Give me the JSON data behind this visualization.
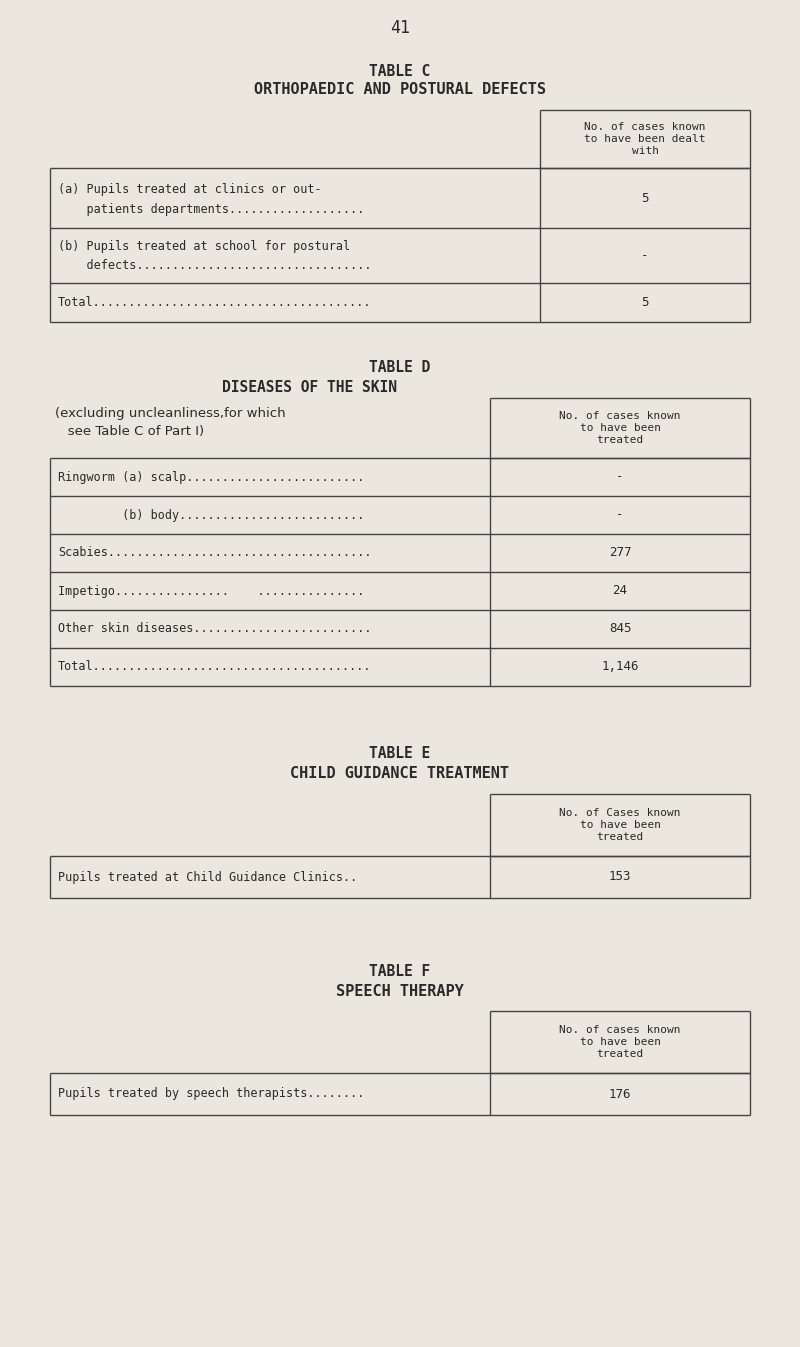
{
  "bg_color": "#ebe7de",
  "text_color": "#2a2a2a",
  "line_color": "#444444",
  "page_number": "41",
  "table_c": {
    "title1": "TABLE C",
    "title2": "ORTHOPAEDIC AND POSTURAL DEFECTS",
    "col_header": "No. of cases known\nto have been dealt\nwith",
    "row1_line1": "(a) Pupils treated at clinics or out-",
    "row1_line2": "    patients departments...................",
    "row1_val": "5",
    "row2_line1": "(b) Pupils treated at school for postural",
    "row2_line2": "    defects.................................",
    "row2_val": "-",
    "row3_label": "Total.......................................",
    "row3_val": "5"
  },
  "table_d": {
    "title1": "TABLE D",
    "title2": "DISEASES OF THE SKIN",
    "subtitle1": "(excluding uncleanliness,for which",
    "subtitle2": "   see Table C of Part I)",
    "col_header": "No. of cases known\nto have been\ntreated",
    "rows": [
      {
        "label": "Ringworm (a) scalp.........................",
        "value": "-"
      },
      {
        "label": "         (b) body..........................",
        "value": "-"
      },
      {
        "label": "Scabies.....................................",
        "value": "277"
      },
      {
        "label": "Impetigo................    ...............",
        "value": "24"
      },
      {
        "label": "Other skin diseases.........................",
        "value": "845"
      },
      {
        "label": "Total.......................................",
        "value": "1,146"
      }
    ]
  },
  "table_e": {
    "title1": "TABLE E",
    "title2": "CHILD GUIDANCE TREATMENT",
    "col_header": "No. of Cases known\nto have been\ntreated",
    "row_label": "Pupils treated at Child Guidance Clinics..",
    "row_val": "153"
  },
  "table_f": {
    "title1": "TABLE F",
    "title2": "SPEECH THERAPY",
    "col_header": "No. of cases known\nto have been\ntreated",
    "row_label": "Pupils treated by speech therapists........",
    "row_val": "176"
  }
}
